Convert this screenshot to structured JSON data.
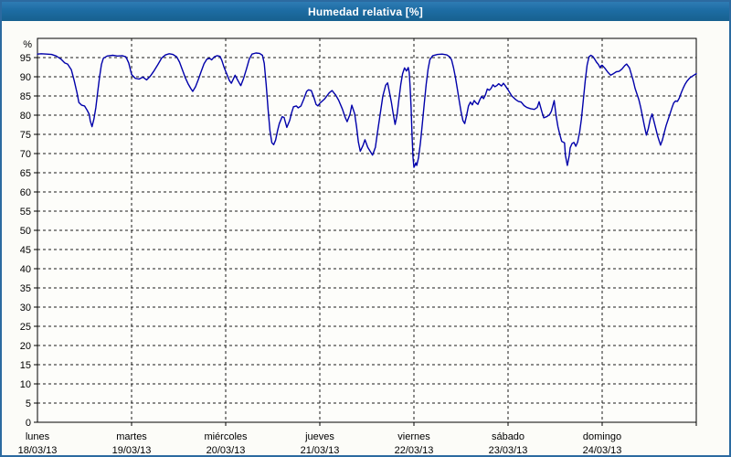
{
  "window": {
    "title": "Humedad relativa [%]"
  },
  "colors": {
    "title_bar_top": "#2e7cb4",
    "title_bar_bottom": "#17618f",
    "title_text": "#ffffff",
    "outer_border": "#2c6aa0",
    "background": "#fcfcf8",
    "plot_background": "#fdfdfa",
    "axis": "#000000",
    "grid": "#1a1a1a",
    "line": "#0000aa",
    "tick_text": "#000000"
  },
  "chart_data": {
    "type": "line",
    "title": "Humedad relativa [%]",
    "ylabel": "%",
    "ylim": [
      0,
      100
    ],
    "ytick_step": 5,
    "ytick_max_labeled": 95,
    "grid": "dashed",
    "legend_position": "none",
    "x_days": [
      {
        "name": "lunes",
        "date": "18/03/13"
      },
      {
        "name": "martes",
        "date": "19/03/13"
      },
      {
        "name": "miércoles",
        "date": "20/03/13"
      },
      {
        "name": "jueves",
        "date": "21/03/13"
      },
      {
        "name": "viernes",
        "date": "22/03/13"
      },
      {
        "name": "sábado",
        "date": "23/03/13"
      },
      {
        "name": "domingo",
        "date": "24/03/13"
      }
    ],
    "xlim_days": [
      0,
      7
    ],
    "series": [
      {
        "name": "Humedad relativa",
        "points": [
          [
            0.0,
            95.9
          ],
          [
            0.04,
            96.0
          ],
          [
            0.1,
            95.9
          ],
          [
            0.15,
            95.8
          ],
          [
            0.2,
            95.4
          ],
          [
            0.25,
            94.6
          ],
          [
            0.29,
            93.6
          ],
          [
            0.32,
            93.3
          ],
          [
            0.36,
            91.8
          ],
          [
            0.39,
            89.0
          ],
          [
            0.42,
            85.8
          ],
          [
            0.44,
            83.3
          ],
          [
            0.47,
            82.6
          ],
          [
            0.5,
            82.4
          ],
          [
            0.53,
            81.2
          ],
          [
            0.55,
            80.2
          ],
          [
            0.56,
            78.6
          ],
          [
            0.58,
            77.0
          ],
          [
            0.6,
            79.0
          ],
          [
            0.62,
            82.0
          ],
          [
            0.64,
            86.0
          ],
          [
            0.66,
            90.0
          ],
          [
            0.68,
            93.2
          ],
          [
            0.7,
            94.8
          ],
          [
            0.74,
            95.4
          ],
          [
            0.8,
            95.6
          ],
          [
            0.85,
            95.4
          ],
          [
            0.9,
            95.5
          ],
          [
            0.94,
            95.2
          ],
          [
            0.97,
            93.6
          ],
          [
            1.0,
            90.6
          ],
          [
            1.04,
            89.6
          ],
          [
            1.08,
            89.4
          ],
          [
            1.12,
            89.9
          ],
          [
            1.16,
            89.2
          ],
          [
            1.2,
            90.2
          ],
          [
            1.24,
            91.6
          ],
          [
            1.28,
            93.2
          ],
          [
            1.32,
            94.9
          ],
          [
            1.36,
            95.7
          ],
          [
            1.4,
            96.0
          ],
          [
            1.44,
            95.8
          ],
          [
            1.48,
            95.2
          ],
          [
            1.51,
            93.8
          ],
          [
            1.54,
            91.8
          ],
          [
            1.57,
            89.8
          ],
          [
            1.6,
            88.2
          ],
          [
            1.63,
            86.9
          ],
          [
            1.65,
            86.2
          ],
          [
            1.68,
            87.4
          ],
          [
            1.71,
            89.3
          ],
          [
            1.74,
            91.4
          ],
          [
            1.77,
            93.4
          ],
          [
            1.8,
            94.6
          ],
          [
            1.83,
            94.8
          ],
          [
            1.85,
            94.4
          ],
          [
            1.88,
            95.2
          ],
          [
            1.91,
            95.5
          ],
          [
            1.94,
            95.3
          ],
          [
            1.96,
            94.2
          ],
          [
            1.98,
            92.7
          ],
          [
            2.0,
            91.4
          ],
          [
            2.04,
            89.0
          ],
          [
            2.06,
            88.3
          ],
          [
            2.1,
            90.4
          ],
          [
            2.13,
            89.0
          ],
          [
            2.16,
            87.7
          ],
          [
            2.19,
            89.6
          ],
          [
            2.22,
            92.0
          ],
          [
            2.25,
            94.6
          ],
          [
            2.28,
            95.9
          ],
          [
            2.32,
            96.2
          ],
          [
            2.36,
            96.1
          ],
          [
            2.39,
            95.6
          ],
          [
            2.41,
            93.5
          ],
          [
            2.43,
            88.0
          ],
          [
            2.45,
            81.5
          ],
          [
            2.47,
            76.0
          ],
          [
            2.49,
            72.8
          ],
          [
            2.51,
            72.3
          ],
          [
            2.53,
            73.5
          ],
          [
            2.55,
            75.8
          ],
          [
            2.57,
            77.8
          ],
          [
            2.6,
            79.6
          ],
          [
            2.62,
            79.4
          ],
          [
            2.65,
            76.8
          ],
          [
            2.68,
            78.6
          ],
          [
            2.7,
            80.6
          ],
          [
            2.72,
            82.2
          ],
          [
            2.75,
            82.4
          ],
          [
            2.77,
            81.9
          ],
          [
            2.8,
            82.4
          ],
          [
            2.83,
            84.2
          ],
          [
            2.86,
            86.2
          ],
          [
            2.88,
            86.6
          ],
          [
            2.91,
            86.4
          ],
          [
            2.94,
            84.4
          ],
          [
            2.96,
            82.8
          ],
          [
            2.98,
            82.4
          ],
          [
            3.0,
            83.1
          ],
          [
            3.05,
            84.2
          ],
          [
            3.1,
            85.8
          ],
          [
            3.13,
            86.4
          ],
          [
            3.17,
            85.2
          ],
          [
            3.2,
            83.9
          ],
          [
            3.24,
            81.6
          ],
          [
            3.27,
            79.4
          ],
          [
            3.29,
            78.3
          ],
          [
            3.32,
            80.2
          ],
          [
            3.34,
            82.6
          ],
          [
            3.37,
            80.4
          ],
          [
            3.39,
            77.0
          ],
          [
            3.41,
            73.0
          ],
          [
            3.43,
            70.6
          ],
          [
            3.46,
            72.2
          ],
          [
            3.48,
            73.6
          ],
          [
            3.51,
            71.6
          ],
          [
            3.54,
            70.4
          ],
          [
            3.56,
            69.6
          ],
          [
            3.59,
            71.6
          ],
          [
            3.61,
            75.0
          ],
          [
            3.64,
            80.0
          ],
          [
            3.67,
            85.0
          ],
          [
            3.7,
            87.8
          ],
          [
            3.72,
            88.4
          ],
          [
            3.74,
            86.0
          ],
          [
            3.76,
            83.4
          ],
          [
            3.78,
            80.4
          ],
          [
            3.8,
            77.6
          ],
          [
            3.82,
            80.0
          ],
          [
            3.84,
            84.0
          ],
          [
            3.86,
            88.0
          ],
          [
            3.88,
            90.8
          ],
          [
            3.9,
            92.3
          ],
          [
            3.92,
            91.5
          ],
          [
            3.94,
            92.4
          ],
          [
            3.95,
            91.0
          ],
          [
            3.96,
            87.0
          ],
          [
            3.97,
            82.0
          ],
          [
            3.98,
            75.0
          ],
          [
            3.99,
            69.0
          ],
          [
            4.0,
            66.4
          ],
          [
            4.01,
            66.9
          ],
          [
            4.02,
            67.6
          ],
          [
            4.03,
            66.9
          ],
          [
            4.05,
            69.0
          ],
          [
            4.07,
            73.0
          ],
          [
            4.09,
            78.0
          ],
          [
            4.11,
            83.0
          ],
          [
            4.13,
            88.0
          ],
          [
            4.15,
            92.0
          ],
          [
            4.17,
            94.5
          ],
          [
            4.2,
            95.5
          ],
          [
            4.25,
            95.8
          ],
          [
            4.3,
            95.9
          ],
          [
            4.35,
            95.7
          ],
          [
            4.38,
            95.2
          ],
          [
            4.4,
            94.4
          ],
          [
            4.42,
            92.4
          ],
          [
            4.44,
            90.0
          ],
          [
            4.46,
            87.0
          ],
          [
            4.48,
            84.0
          ],
          [
            4.5,
            81.0
          ],
          [
            4.52,
            78.6
          ],
          [
            4.54,
            77.8
          ],
          [
            4.56,
            80.0
          ],
          [
            4.58,
            82.4
          ],
          [
            4.6,
            83.4
          ],
          [
            4.62,
            82.7
          ],
          [
            4.64,
            83.8
          ],
          [
            4.66,
            83.2
          ],
          [
            4.68,
            82.8
          ],
          [
            4.7,
            84.0
          ],
          [
            4.72,
            84.9
          ],
          [
            4.74,
            84.3
          ],
          [
            4.76,
            85.3
          ],
          [
            4.78,
            86.8
          ],
          [
            4.8,
            86.5
          ],
          [
            4.82,
            87.0
          ],
          [
            4.84,
            87.9
          ],
          [
            4.86,
            87.4
          ],
          [
            4.88,
            87.7
          ],
          [
            4.9,
            88.2
          ],
          [
            4.93,
            87.6
          ],
          [
            4.95,
            88.3
          ],
          [
            4.97,
            87.7
          ],
          [
            5.0,
            86.6
          ],
          [
            5.04,
            85.0
          ],
          [
            5.08,
            84.1
          ],
          [
            5.11,
            83.6
          ],
          [
            5.14,
            83.4
          ],
          [
            5.17,
            82.5
          ],
          [
            5.2,
            82.0
          ],
          [
            5.24,
            81.7
          ],
          [
            5.28,
            81.5
          ],
          [
            5.31,
            82.0
          ],
          [
            5.33,
            83.5
          ],
          [
            5.36,
            80.8
          ],
          [
            5.38,
            79.3
          ],
          [
            5.41,
            79.6
          ],
          [
            5.44,
            80.1
          ],
          [
            5.46,
            81.0
          ],
          [
            5.49,
            83.8
          ],
          [
            5.51,
            80.0
          ],
          [
            5.53,
            77.0
          ],
          [
            5.55,
            75.0
          ],
          [
            5.57,
            73.2
          ],
          [
            5.6,
            72.8
          ],
          [
            5.61,
            69.5
          ],
          [
            5.63,
            66.9
          ],
          [
            5.65,
            69.5
          ],
          [
            5.66,
            71.5
          ],
          [
            5.68,
            72.6
          ],
          [
            5.7,
            72.9
          ],
          [
            5.72,
            71.9
          ],
          [
            5.74,
            73.0
          ],
          [
            5.76,
            75.5
          ],
          [
            5.78,
            79.0
          ],
          [
            5.8,
            84.0
          ],
          [
            5.82,
            89.0
          ],
          [
            5.84,
            93.0
          ],
          [
            5.86,
            95.2
          ],
          [
            5.88,
            95.6
          ],
          [
            5.9,
            95.3
          ],
          [
            5.92,
            94.6
          ],
          [
            5.94,
            93.8
          ],
          [
            5.96,
            93.2
          ],
          [
            5.98,
            92.3
          ],
          [
            5.99,
            92.9
          ],
          [
            6.0,
            93.0
          ],
          [
            6.03,
            92.2
          ],
          [
            6.06,
            91.2
          ],
          [
            6.09,
            90.4
          ],
          [
            6.12,
            90.8
          ],
          [
            6.15,
            91.3
          ],
          [
            6.18,
            91.4
          ],
          [
            6.21,
            92.0
          ],
          [
            6.24,
            92.9
          ],
          [
            6.26,
            93.3
          ],
          [
            6.29,
            92.3
          ],
          [
            6.31,
            90.7
          ],
          [
            6.33,
            89.0
          ],
          [
            6.35,
            87.0
          ],
          [
            6.37,
            85.5
          ],
          [
            6.39,
            84.0
          ],
          [
            6.41,
            82.0
          ],
          [
            6.43,
            79.5
          ],
          [
            6.45,
            77.0
          ],
          [
            6.47,
            74.8
          ],
          [
            6.49,
            76.5
          ],
          [
            6.51,
            78.8
          ],
          [
            6.53,
            80.3
          ],
          [
            6.55,
            78.5
          ],
          [
            6.57,
            76.5
          ],
          [
            6.59,
            74.5
          ],
          [
            6.62,
            72.2
          ],
          [
            6.64,
            73.5
          ],
          [
            6.66,
            75.5
          ],
          [
            6.68,
            77.3
          ],
          [
            6.7,
            78.8
          ],
          [
            6.72,
            80.3
          ],
          [
            6.74,
            81.8
          ],
          [
            6.76,
            83.2
          ],
          [
            6.78,
            83.7
          ],
          [
            6.8,
            83.6
          ],
          [
            6.82,
            84.5
          ],
          [
            6.84,
            85.8
          ],
          [
            6.86,
            87.0
          ],
          [
            6.88,
            88.0
          ],
          [
            6.9,
            88.8
          ],
          [
            6.93,
            89.7
          ],
          [
            6.96,
            90.2
          ],
          [
            7.0,
            90.8
          ]
        ]
      }
    ]
  }
}
